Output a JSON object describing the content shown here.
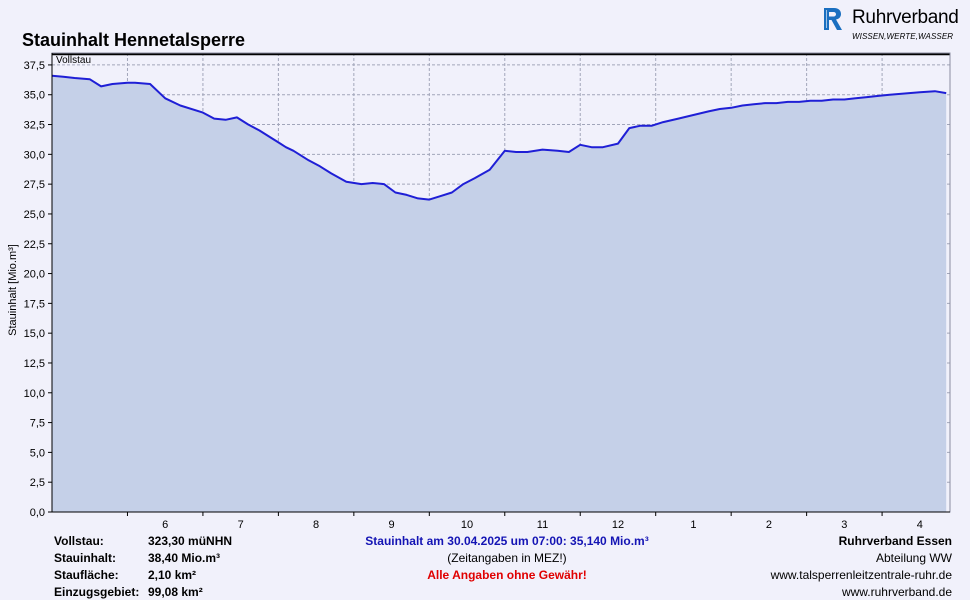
{
  "title": "Stauinhalt Hennetalsperre",
  "logo": {
    "name": "Ruhrverband",
    "tagline": "WISSEN,WERTE,WASSER",
    "icon": "ruhrverband-logo-icon",
    "color": "#1a6fc0"
  },
  "chart_data": {
    "type": "area",
    "ylabel": "Stauinhalt [Mio.m³]",
    "ylim": [
      0,
      38.5
    ],
    "y_ticks": [
      "0,0",
      "2,5",
      "5,0",
      "7,5",
      "10,0",
      "12,5",
      "15,0",
      "17,5",
      "20,0",
      "22,5",
      "25,0",
      "27,5",
      "30,0",
      "32,5",
      "35,0",
      "37,5"
    ],
    "x_ticks": [
      "6",
      "7",
      "8",
      "9",
      "10",
      "11",
      "12",
      "1",
      "2",
      "3",
      "4"
    ],
    "grid": true,
    "reference_line": {
      "label": "Vollstau",
      "value": 38.4
    },
    "series": [
      {
        "x": [
          0.0,
          0.15,
          0.3,
          0.5,
          0.65,
          0.8,
          1.0,
          1.1,
          1.3,
          1.5,
          1.7,
          2.0,
          2.15,
          2.3,
          2.45,
          2.6,
          2.75,
          2.9,
          3.0,
          3.1,
          3.2,
          3.4,
          3.55,
          3.7,
          3.9,
          4.1,
          4.25,
          4.4,
          4.55,
          4.7,
          4.85,
          5.0,
          5.15,
          5.3,
          5.45,
          5.6,
          5.8,
          6.0,
          6.15,
          6.3,
          6.5,
          6.7,
          6.85,
          7.0,
          7.15,
          7.3,
          7.5,
          7.65,
          7.8,
          7.95,
          8.1,
          8.3,
          8.5,
          8.7,
          8.85,
          9.0,
          9.15,
          9.3,
          9.45,
          9.6,
          9.75,
          9.9,
          10.05,
          10.2,
          10.35,
          10.5,
          10.65,
          10.8,
          10.95,
          11.1,
          11.3,
          11.5,
          11.7,
          11.85
        ],
        "y": [
          36.6,
          36.5,
          36.4,
          36.3,
          35.7,
          35.9,
          36.0,
          36.0,
          35.9,
          34.7,
          34.1,
          33.5,
          33.0,
          32.9,
          33.1,
          32.5,
          32.0,
          31.4,
          31.0,
          30.6,
          30.3,
          29.5,
          29.0,
          28.4,
          27.7,
          27.5,
          27.6,
          27.5,
          26.8,
          26.6,
          26.3,
          26.2,
          26.5,
          26.8,
          27.5,
          28.0,
          28.7,
          30.3,
          30.2,
          30.2,
          30.4,
          30.3,
          30.2,
          30.8,
          30.6,
          30.6,
          30.9,
          32.2,
          32.4,
          32.4,
          32.7,
          33.0,
          33.3,
          33.6,
          33.8,
          33.9,
          34.1,
          34.2,
          34.3,
          34.3,
          34.4,
          34.4,
          34.5,
          34.5,
          34.6,
          34.6,
          34.7,
          34.8,
          34.9,
          35.0,
          35.1,
          35.2,
          35.3,
          35.14
        ]
      }
    ],
    "colors": {
      "line": "#1f1fd6",
      "fill": "#c5d0e8",
      "reference": "#000000",
      "grid": "#a2a6ba",
      "plot_bg": "#f1f1fb"
    }
  },
  "footer": {
    "left": [
      {
        "label": "Vollstau:",
        "value": "323,30 müNHN"
      },
      {
        "label": "Stauinhalt:",
        "value": "38,40 Mio.m³"
      },
      {
        "label": "Staufläche:",
        "value": "2,10 km²"
      },
      {
        "label": "Einzugsgebiet:",
        "value": "99,08 km²"
      }
    ],
    "center": {
      "status": "Stauinhalt am 30.04.2025 um 07:00:  35,140 Mio.m³",
      "note": "(Zeitangaben in MEZ!)",
      "warning": "Alle Angaben ohne Gewähr!",
      "status_color": "#1414b4",
      "warning_color": "#e00000"
    },
    "right": [
      "Ruhrverband Essen",
      "Abteilung WW",
      "www.talsperrenleitzentrale-ruhr.de",
      "www.ruhrverband.de"
    ]
  }
}
